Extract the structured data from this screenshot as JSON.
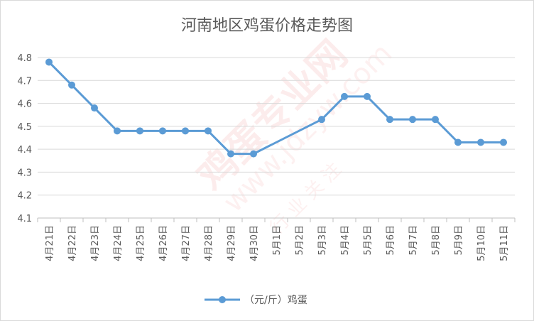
{
  "chart_data": {
    "type": "line",
    "title": "河南地区鸡蛋价格走势图",
    "categories": [
      "4月21日",
      "4月22日",
      "4月23日",
      "4月24日",
      "4月25日",
      "4月26日",
      "4月27日",
      "4月28日",
      "4月29日",
      "4月30日",
      "5月1日",
      "5月2日",
      "5月3日",
      "5月4日",
      "5月5日",
      "5月6日",
      "5月7日",
      "5月8日",
      "5月9日",
      "5月10日",
      "5月11日"
    ],
    "series": [
      {
        "name": "（元/斤）鸡蛋",
        "color": "#5b9bd5",
        "values": [
          4.78,
          4.68,
          4.58,
          4.48,
          4.48,
          4.48,
          4.48,
          4.48,
          4.38,
          4.38,
          null,
          null,
          4.53,
          4.63,
          4.63,
          4.53,
          4.53,
          4.53,
          4.43,
          4.43,
          4.43
        ]
      }
    ],
    "y_ticks": [
      "4.1",
      "4.2",
      "4.3",
      "4.4",
      "4.5",
      "4.6",
      "4.7",
      "4.8"
    ],
    "ylim": [
      4.1,
      4.8
    ],
    "grid": true,
    "legend_position": "bottom",
    "gridline_color": "#d9d9d9",
    "axis_color": "#bfbfbf"
  },
  "watermark": {
    "text": "鸡蛋专业网",
    "url": "www.jdzyw.com",
    "note": "行 业 关 注"
  }
}
